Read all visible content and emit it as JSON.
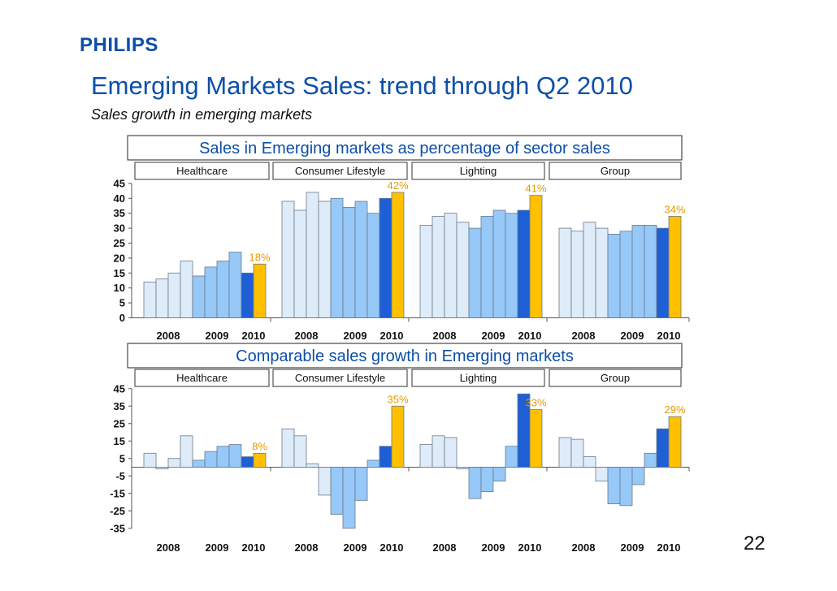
{
  "header": {
    "logo": "PHILIPS",
    "title": "Emerging Markets Sales: trend through Q2 2010",
    "subtitle": "Sales growth in emerging markets",
    "page_number": "22"
  },
  "colors": {
    "light": "#deebf8",
    "mid": "#96c8f8",
    "dark": "#1e5fd6",
    "highlight": "#ffc000",
    "label": "#e69a00",
    "banner_text": "#0b4fa8"
  },
  "chart_data": [
    {
      "type": "bar",
      "title": "Sales in Emerging markets as percentage of sector sales",
      "panels": [
        "Healthcare",
        "Consumer Lifestyle",
        "Lighting",
        "Group"
      ],
      "year_labels": [
        "2008",
        "2009",
        "2010"
      ],
      "ylim": [
        0,
        45
      ],
      "yticks": [
        45,
        40,
        35,
        30,
        25,
        20,
        15,
        10,
        5,
        0
      ],
      "bar_groups": [
        "2008",
        "2008",
        "2008",
        "2008",
        "2009",
        "2009",
        "2009",
        "2009",
        "2010",
        "2010"
      ],
      "series": [
        {
          "name": "Healthcare",
          "values": [
            12,
            13,
            15,
            19,
            14,
            17,
            19,
            22,
            15,
            18
          ]
        },
        {
          "name": "Consumer Lifestyle",
          "values": [
            39,
            36,
            42,
            39,
            40,
            37,
            39,
            35,
            40,
            42
          ]
        },
        {
          "name": "Lighting",
          "values": [
            31,
            34,
            35,
            32,
            30,
            34,
            36,
            35,
            36,
            41
          ]
        },
        {
          "name": "Group",
          "values": [
            30,
            29,
            32,
            30,
            28,
            29,
            31,
            31,
            30,
            34
          ]
        }
      ],
      "annotations": [
        "18%",
        "42%",
        "41%",
        "34%"
      ]
    },
    {
      "type": "bar",
      "title": "Comparable sales growth in Emerging markets",
      "panels": [
        "Healthcare",
        "Consumer Lifestyle",
        "Lighting",
        "Group"
      ],
      "year_labels": [
        "2008",
        "2009",
        "2010"
      ],
      "ylim": [
        -35,
        45
      ],
      "yticks": [
        45,
        35,
        25,
        15,
        5,
        -5,
        -15,
        -25,
        -35
      ],
      "bar_groups": [
        "2008",
        "2008",
        "2008",
        "2008",
        "2009",
        "2009",
        "2009",
        "2009",
        "2010",
        "2010"
      ],
      "series": [
        {
          "name": "Healthcare",
          "values": [
            8,
            -1,
            5,
            18,
            4,
            9,
            12,
            13,
            6,
            8
          ]
        },
        {
          "name": "Consumer Lifestyle",
          "values": [
            22,
            18,
            2,
            -16,
            -27,
            -35,
            -19,
            4,
            12,
            35
          ]
        },
        {
          "name": "Lighting",
          "values": [
            13,
            18,
            17,
            -1,
            -18,
            -14,
            -8,
            12,
            42,
            33
          ]
        },
        {
          "name": "Group",
          "values": [
            17,
            16,
            6,
            -8,
            -21,
            -22,
            -10,
            8,
            22,
            29
          ]
        }
      ],
      "annotations": [
        "8%",
        "35%",
        "33%",
        "29%"
      ]
    }
  ]
}
